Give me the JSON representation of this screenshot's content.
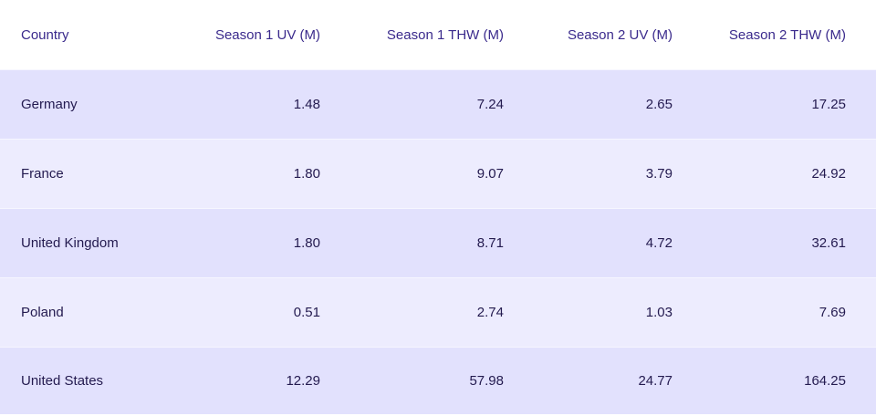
{
  "chart_data": {
    "type": "table",
    "columns": [
      "Country",
      "Season 1 UV (M)",
      "Season 1 THW (M)",
      "Season 2 UV (M)",
      "Season 2 THW (M)"
    ],
    "rows": [
      [
        "Germany",
        "1.48",
        "7.24",
        "2.65",
        "17.25"
      ],
      [
        "France",
        "1.80",
        "9.07",
        "3.79",
        "24.92"
      ],
      [
        "United Kingdom",
        "1.80",
        "8.71",
        "4.72",
        "32.61"
      ],
      [
        "Poland",
        "0.51",
        "2.74",
        "1.03",
        "7.69"
      ],
      [
        "United States",
        "12.29",
        "57.98",
        "24.77",
        "164.25"
      ]
    ]
  },
  "colors": {
    "header_text": "#3a2a8c",
    "body_text": "#231a4f",
    "row_dark": "#e2e1fd",
    "row_light": "#edecfe"
  }
}
